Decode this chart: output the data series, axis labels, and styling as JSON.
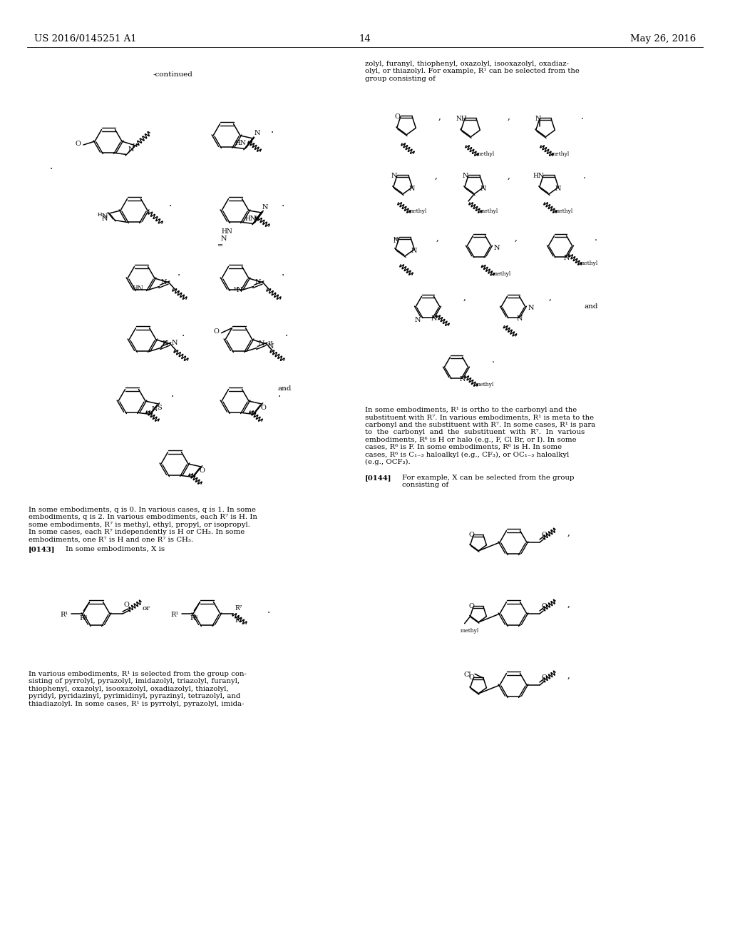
{
  "figsize": [
    10.24,
    13.2
  ],
  "dpi": 100,
  "bg_color": "#ffffff",
  "header_left": "US 2016/0145251 A1",
  "header_right": "May 26, 2016",
  "page_num": "14"
}
